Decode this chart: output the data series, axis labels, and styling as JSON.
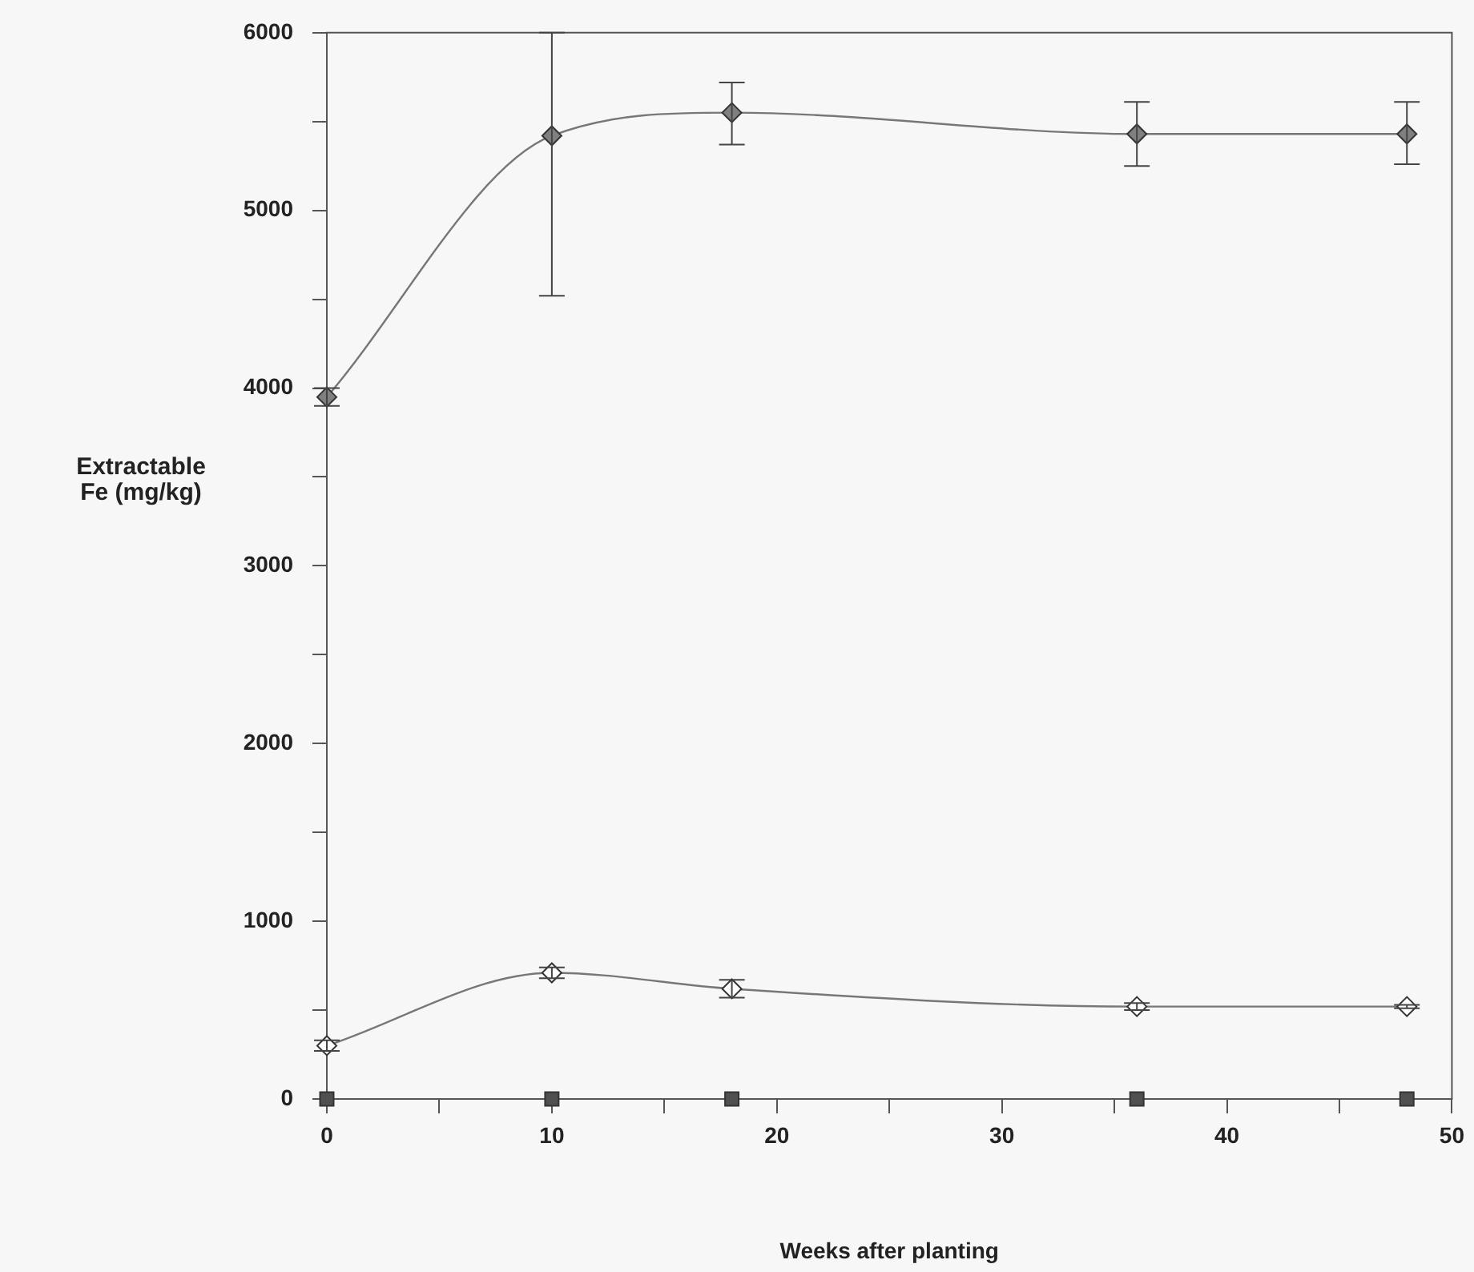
{
  "chart_data": {
    "type": "line",
    "xlabel": "Weeks after planting",
    "ylabel": "Extractable\nFe (mg/kg)",
    "x": [
      0,
      10,
      18,
      36,
      48
    ],
    "series": [
      {
        "color": "#808080",
        "marker": "diamond",
        "values": [
          3950,
          5420,
          5550,
          5430,
          5430
        ],
        "errors": [
          50,
          [
            4520,
            6000
          ],
          [
            5370,
            5720
          ],
          [
            5250,
            5610
          ],
          [
            5260,
            5610
          ]
        ]
      },
      {
        "color": "#ffffff",
        "marker": "diamond",
        "values": [
          300,
          710,
          620,
          520,
          520
        ],
        "errors": [
          30,
          30,
          50,
          20,
          10
        ]
      },
      {
        "type": "scatter",
        "color": "#505050",
        "marker": "square",
        "values": [
          0,
          0,
          0,
          0,
          0
        ]
      }
    ],
    "xlim": [
      0,
      50
    ],
    "ylim": [
      0,
      6000
    ],
    "xticks": [
      0,
      {
        "value": 5,
        "label": null
      },
      10,
      {
        "value": 15,
        "label": null
      },
      20,
      {
        "value": 25,
        "label": null
      },
      30,
      {
        "value": 35,
        "label": null
      },
      40,
      {
        "value": 45,
        "label": null
      },
      50
    ],
    "yticks": [
      0,
      {
        "value": 500,
        "label": null
      },
      1000,
      {
        "value": 1500,
        "label": null
      },
      2000,
      {
        "value": 2500,
        "label": null
      },
      3000,
      {
        "value": 3500,
        "label": null
      },
      4000,
      {
        "value": 4500,
        "label": null
      },
      5000,
      {
        "value": 5500,
        "label": null
      },
      6000
    ],
    "grid": false,
    "legend": false,
    "line_style": "solid"
  }
}
